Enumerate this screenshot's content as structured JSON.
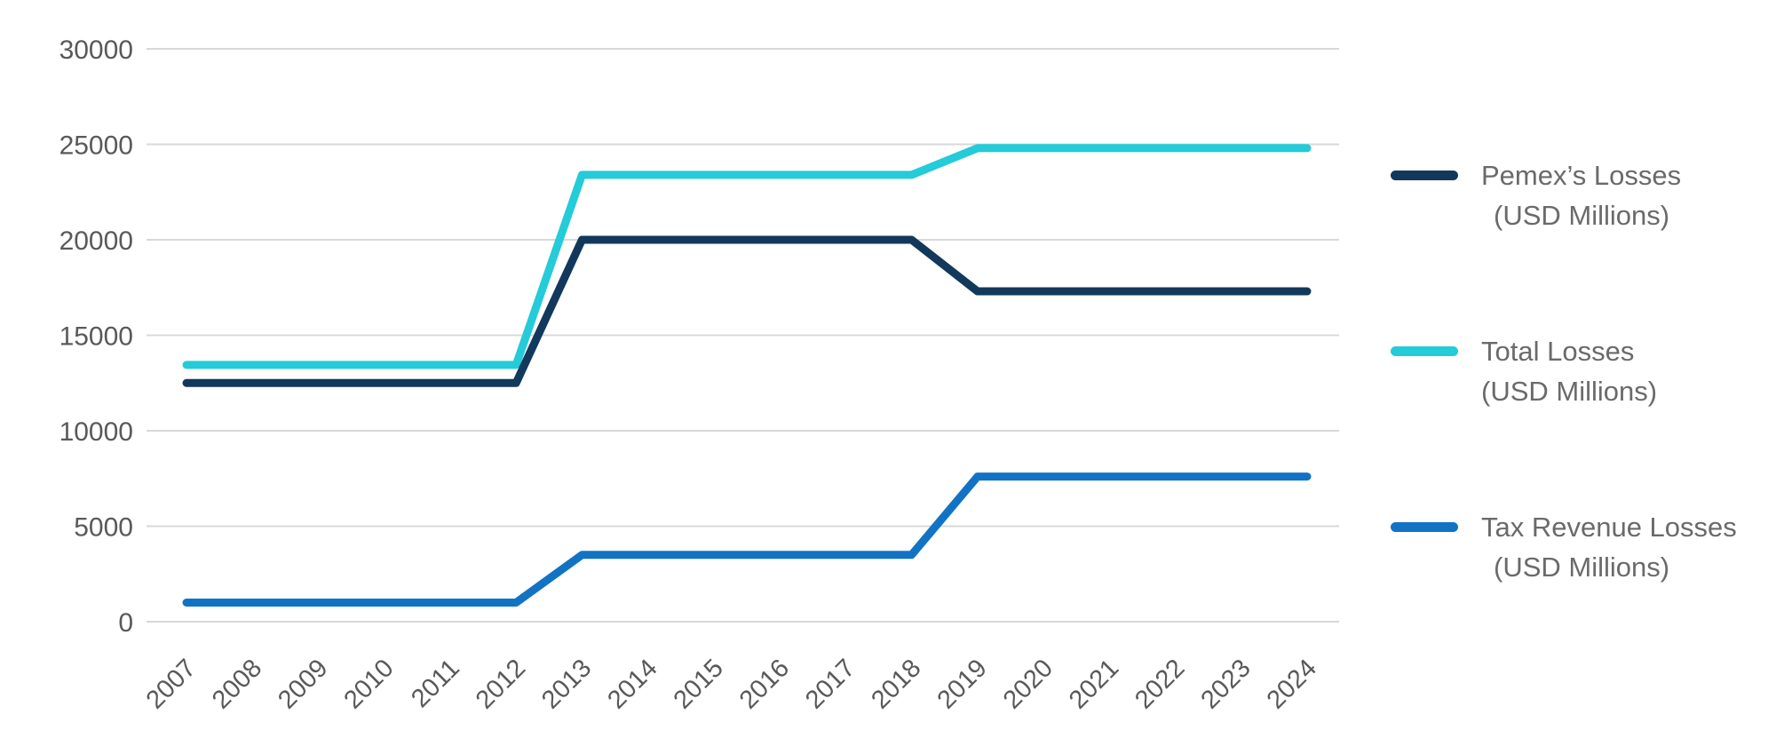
{
  "chart_data": {
    "type": "line",
    "x": [
      2007,
      2008,
      2009,
      2010,
      2011,
      2012,
      2013,
      2014,
      2015,
      2016,
      2017,
      2018,
      2019,
      2020,
      2021,
      2022,
      2023,
      2024
    ],
    "series": [
      {
        "name": "Pemex’s Losses (USD Millions)",
        "legend": [
          "Pemex’s Losses",
          "(USD Millions)"
        ],
        "color": "#12395C",
        "values": [
          12500,
          12500,
          12500,
          12500,
          12500,
          12500,
          20000,
          20000,
          20000,
          20000,
          20000,
          20000,
          17300,
          17300,
          17300,
          17300,
          17300,
          17300
        ]
      },
      {
        "name": "Total Losses (USD Millions)",
        "legend": [
          "Total Losses",
          "(USD Millions)"
        ],
        "color": "#24CBD8",
        "values": [
          13450,
          13450,
          13450,
          13450,
          13450,
          13450,
          23400,
          23400,
          23400,
          23400,
          23400,
          23400,
          24800,
          24800,
          24800,
          24800,
          24800,
          24800
        ]
      },
      {
        "name": "Tax Revenue Losses (USD Millions)",
        "legend": [
          "Tax Revenue Losses",
          "(USD Millions)"
        ],
        "color": "#1273C4",
        "values": [
          1000,
          1000,
          1000,
          1000,
          1000,
          1000,
          3500,
          3500,
          3500,
          3500,
          3500,
          3500,
          7600,
          7600,
          7600,
          7600,
          7600,
          7600
        ]
      }
    ],
    "y_ticks": [
      0,
      5000,
      10000,
      15000,
      20000,
      25000,
      30000
    ],
    "ylim": [
      0,
      30000
    ],
    "xlabel": "",
    "ylabel": "",
    "title": "",
    "grid": true,
    "legend_position": "right",
    "colors": {
      "gridline": "#d8d8d8",
      "tick_label": "#595959",
      "legend_text": "#6a6a6a",
      "background": "#ffffff"
    }
  }
}
